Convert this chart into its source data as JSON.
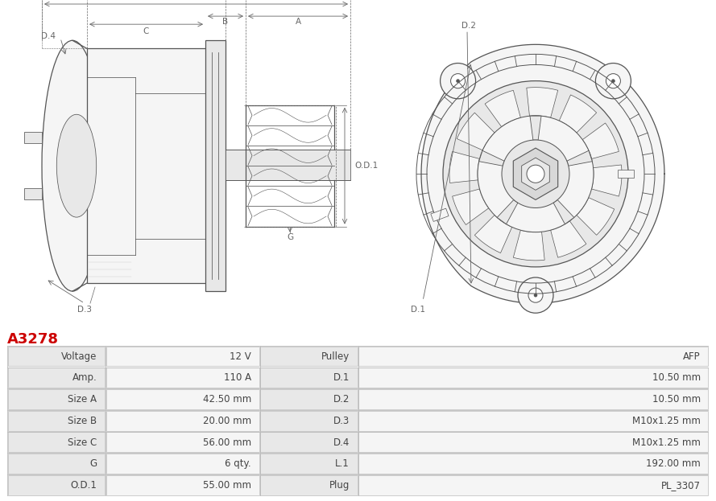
{
  "title": "A3278",
  "title_color": "#cc0000",
  "table_data": [
    [
      "Voltage",
      "12 V",
      "Pulley",
      "AFP"
    ],
    [
      "Amp.",
      "110 A",
      "D.1",
      "10.50 mm"
    ],
    [
      "Size A",
      "42.50 mm",
      "D.2",
      "10.50 mm"
    ],
    [
      "Size B",
      "20.00 mm",
      "D.3",
      "M10x1.25 mm"
    ],
    [
      "Size C",
      "56.00 mm",
      "D.4",
      "M10x1.25 mm"
    ],
    [
      "G",
      "6 qty.",
      "L.1",
      "192.00 mm"
    ],
    [
      "O.D.1",
      "55.00 mm",
      "Plug",
      "PL_3307"
    ]
  ],
  "bg_color": "#ffffff",
  "text_color": "#444444",
  "dim_color": "#666666",
  "line_color": "#555555",
  "fill_light": "#f5f5f5",
  "fill_mid": "#e8e8e8",
  "fill_dark": "#d8d8d8",
  "font_size": 8.5,
  "row_bg_label": "#e8e8e8",
  "row_bg_value": "#f5f5f5"
}
